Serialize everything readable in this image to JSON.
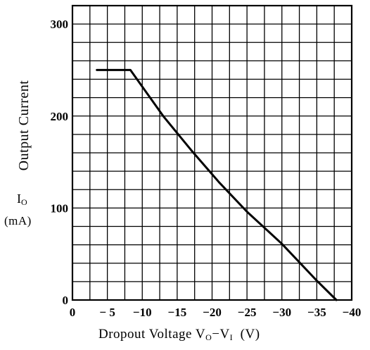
{
  "chart_data": {
    "type": "line",
    "title": "",
    "ylabel": "Output Current",
    "ylabel_symbol": "I",
    "ylabel_symbol_sub": "O",
    "ylabel_unit": "(mA)",
    "xlabel_main": "Dropout Voltage V",
    "xlabel_sub1": "O",
    "xlabel_dash": "−V",
    "xlabel_sub2": "I",
    "xlabel_unit": "(V)",
    "xlim": [
      0,
      -40
    ],
    "ylim": [
      0,
      320
    ],
    "x_ticks": [
      {
        "value": 0,
        "label": "0"
      },
      {
        "value": -5,
        "label": "− 5"
      },
      {
        "value": -10,
        "label": "−10"
      },
      {
        "value": -15,
        "label": "−15"
      },
      {
        "value": -20,
        "label": "−20"
      },
      {
        "value": -25,
        "label": "−25"
      },
      {
        "value": -30,
        "label": "−30"
      },
      {
        "value": -35,
        "label": "−35"
      },
      {
        "value": -40,
        "label": "−40"
      }
    ],
    "y_ticks": [
      {
        "value": 0,
        "label": "0"
      },
      {
        "value": 100,
        "label": "100"
      },
      {
        "value": 200,
        "label": "200"
      },
      {
        "value": 300,
        "label": "300"
      }
    ],
    "grid": true,
    "series": [
      {
        "x": [
          -3.5,
          -8.3,
          -13,
          -17,
          -21,
          -25,
          -30,
          -35,
          -37.8
        ],
        "y": [
          250,
          250,
          200,
          163,
          128,
          96,
          61,
          21,
          0
        ]
      }
    ]
  }
}
